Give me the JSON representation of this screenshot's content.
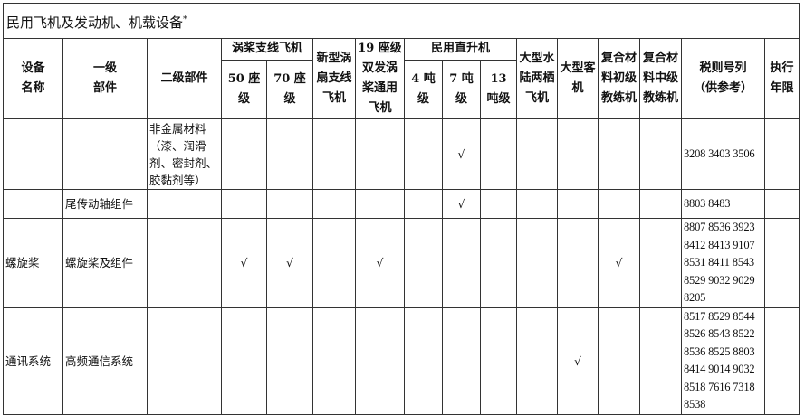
{
  "title": "民用飞机及发动机、机载设备",
  "title_mark": "*",
  "headers": {
    "device_name": "设备\n名称",
    "level1": "一级\n部件",
    "level2": "二级部件",
    "turboprop_group": "涡桨支线飞机",
    "seat50": "50 座级",
    "seat70": "70 座级",
    "new_turbofan": "新型涡扇支线飞机",
    "seat19": "19 座级双发涡桨通用飞机",
    "heli_group": "民用直升机",
    "ton4": "4 吨级",
    "ton7": "7 吨级",
    "ton13": "13 吨级",
    "amphibian": "大型水陆两栖飞机",
    "airliner": "大型客机",
    "composite_primary": "复合材料初级教练机",
    "composite_intermediate": "复合材料中级教练机",
    "tariff": "税则号列\n（供参考）",
    "years": "执行年限"
  },
  "check_mark": "√",
  "rows": [
    {
      "device": "",
      "level1": "",
      "level2": "非金属材料（漆、润滑剂、密封剂、胶黏剂等）",
      "checks": [
        false,
        false,
        false,
        false,
        false,
        true,
        false,
        false,
        false,
        false,
        false
      ],
      "tariff": "3208 3403 3506",
      "years": ""
    },
    {
      "device": "",
      "level1": "尾传动轴组件",
      "level2": "",
      "checks": [
        false,
        false,
        false,
        false,
        false,
        true,
        false,
        false,
        false,
        false,
        false
      ],
      "tariff": "8803 8483",
      "years": ""
    },
    {
      "device": "螺旋桨",
      "level1": "螺旋桨及组件",
      "level2": "",
      "checks": [
        true,
        true,
        false,
        true,
        false,
        false,
        false,
        false,
        false,
        true,
        false
      ],
      "tariff": "8807 8536 3923 8412 8413 9107 8531 8411 8543 8529 9032 9029 8205",
      "years": ""
    },
    {
      "device": "通讯系统",
      "level1": "高频通信系统",
      "level2": "",
      "checks": [
        false,
        false,
        false,
        false,
        false,
        false,
        false,
        false,
        true,
        false,
        false
      ],
      "tariff": "8517 8529 8544 8526 8543 8522 8536 8525 8803 8414 9014 9032 8518 7616 7318 8538",
      "years": ""
    }
  ]
}
